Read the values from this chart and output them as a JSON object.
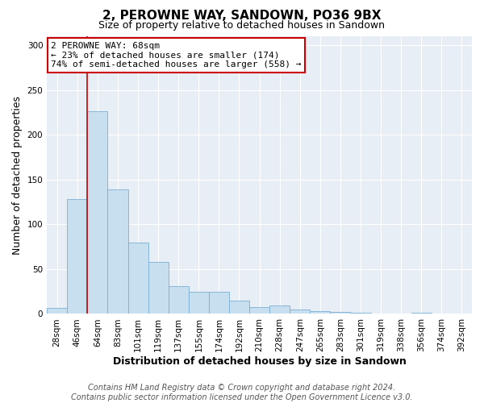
{
  "title": "2, PEROWNE WAY, SANDOWN, PO36 9BX",
  "subtitle": "Size of property relative to detached houses in Sandown",
  "xlabel": "Distribution of detached houses by size in Sandown",
  "ylabel": "Number of detached properties",
  "bar_labels": [
    "28sqm",
    "46sqm",
    "64sqm",
    "83sqm",
    "101sqm",
    "119sqm",
    "137sqm",
    "155sqm",
    "174sqm",
    "192sqm",
    "210sqm",
    "228sqm",
    "247sqm",
    "265sqm",
    "283sqm",
    "301sqm",
    "319sqm",
    "338sqm",
    "356sqm",
    "374sqm",
    "392sqm"
  ],
  "bar_values": [
    7,
    128,
    226,
    139,
    80,
    58,
    31,
    25,
    25,
    15,
    8,
    9,
    5,
    3,
    2,
    1,
    0,
    0,
    1,
    0,
    0
  ],
  "bar_color": "#c8dff0",
  "bar_edge_color": "#7bafd4",
  "vline_x_index": 2,
  "vline_color": "#cc0000",
  "ylim": [
    0,
    310
  ],
  "yticks": [
    0,
    50,
    100,
    150,
    200,
    250,
    300
  ],
  "annotation_title": "2 PEROWNE WAY: 68sqm",
  "annotation_line1": "← 23% of detached houses are smaller (174)",
  "annotation_line2": "74% of semi-detached houses are larger (558) →",
  "annotation_box_color": "#ffffff",
  "annotation_box_edge": "#cc0000",
  "footer1": "Contains HM Land Registry data © Crown copyright and database right 2024.",
  "footer2": "Contains public sector information licensed under the Open Government Licence v3.0.",
  "background_color": "#ffffff",
  "plot_bg_color": "#e8eef5",
  "grid_color": "#ffffff",
  "title_fontsize": 11,
  "subtitle_fontsize": 9,
  "axis_label_fontsize": 9,
  "tick_fontsize": 7.5,
  "footer_fontsize": 7
}
